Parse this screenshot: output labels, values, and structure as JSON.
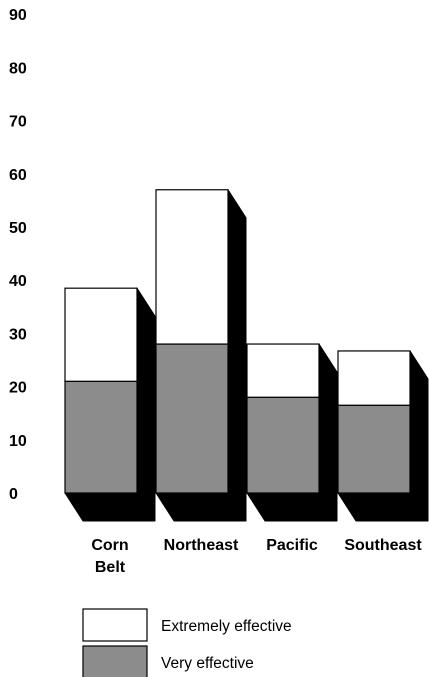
{
  "chart_data": {
    "type": "bar",
    "stacked": true,
    "three_d": true,
    "title": "",
    "xlabel": "",
    "ylabel": "",
    "ylim": [
      0,
      90
    ],
    "yticks": [
      0,
      10,
      20,
      30,
      40,
      50,
      60,
      70,
      80,
      90
    ],
    "yticks_labels": [
      "0",
      "10",
      "20",
      "30",
      "40",
      "50",
      "60",
      "70",
      "80",
      "90"
    ],
    "grid": false,
    "legend_placement": "bottom-left",
    "categories": [
      "Corn Belt",
      "Northeast",
      "Pacific",
      "Southeast"
    ],
    "series": [
      {
        "name": "Very effective",
        "values": [
          21,
          28,
          18,
          16.5
        ],
        "color": "#8c8c8c"
      },
      {
        "name": "Extremely effective",
        "values": [
          17.5,
          29,
          10,
          10.2
        ],
        "color": "#ffffff"
      }
    ],
    "totals": [
      38.5,
      57,
      28,
      26.7
    ],
    "depth_color": "#000000"
  }
}
